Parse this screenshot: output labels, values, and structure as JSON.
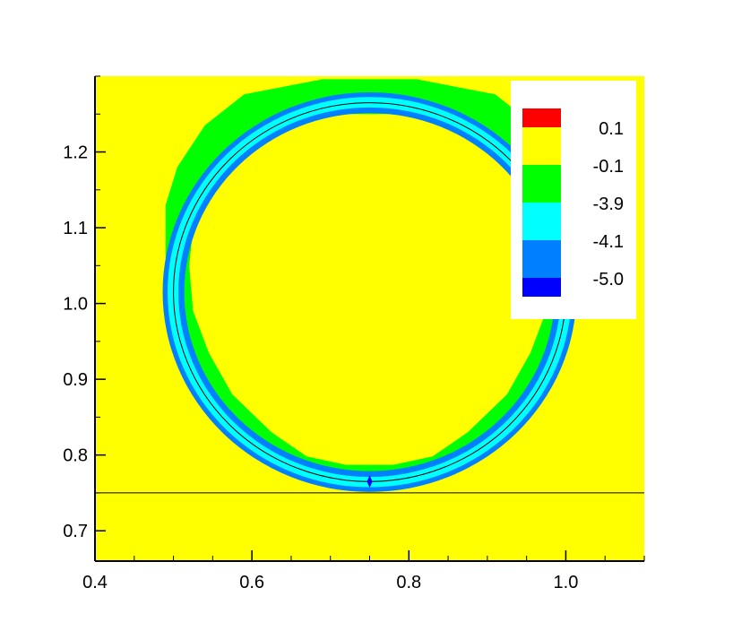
{
  "chart_data": {
    "type": "heatmap",
    "title": "",
    "xlabel": "",
    "ylabel": "",
    "xlim": [
      0.4,
      1.1
    ],
    "ylim": [
      0.66,
      1.3
    ],
    "x_ticks": [
      0.4,
      0.6,
      0.8,
      1.0
    ],
    "x_tick_labels": [
      "0.4",
      "0.6",
      "0.8",
      "1.0"
    ],
    "y_ticks": [
      0.7,
      0.8,
      0.9,
      1.0,
      1.1,
      1.2
    ],
    "y_tick_labels": [
      "0.7",
      "0.8",
      "0.9",
      "1.0",
      "1.1",
      "1.2"
    ],
    "x_minor_step": 0.05,
    "y_minor_step": 0.05,
    "background_color": "#ffff00",
    "contour_levels": [
      {
        "label": "0.1",
        "color": "#ff0000"
      },
      {
        "label": "0.1",
        "color": "#ffff00"
      },
      {
        "label": "-0.1",
        "color": "#00ff00"
      },
      {
        "label": "-3.9",
        "color": "#00ffff"
      },
      {
        "label": "-4.1",
        "color": "#0080ff"
      },
      {
        "label": "-5.0",
        "color": "#0000ff"
      }
    ],
    "legend": {
      "placement": "top-right",
      "entries": [
        "0.1",
        "-0.1",
        "-3.9",
        "-4.1",
        "-5.0"
      ]
    },
    "circle": {
      "cx": 0.75,
      "cy": 1.015,
      "r": 0.25
    },
    "band_outer_octagon": [
      [
        0.69,
        1.296
      ],
      [
        0.81,
        1.296
      ],
      [
        0.91,
        1.276
      ],
      [
        0.96,
        1.235
      ],
      [
        0.996,
        1.18
      ],
      [
        1.01,
        1.13
      ],
      [
        1.01,
        1.06
      ],
      [
        1.005,
        1.0
      ],
      [
        0.985,
        0.94
      ],
      [
        0.95,
        0.88
      ],
      [
        0.9,
        0.82
      ],
      [
        0.85,
        0.778
      ],
      [
        0.8,
        0.757
      ],
      [
        0.7,
        0.757
      ],
      [
        0.645,
        0.778
      ],
      [
        0.595,
        0.82
      ],
      [
        0.55,
        0.88
      ],
      [
        0.515,
        0.94
      ],
      [
        0.495,
        1.0
      ],
      [
        0.49,
        1.06
      ],
      [
        0.49,
        1.13
      ],
      [
        0.505,
        1.18
      ],
      [
        0.54,
        1.235
      ],
      [
        0.59,
        1.276
      ]
    ],
    "band_inner_octagon": [
      [
        0.7,
        1.25
      ],
      [
        0.8,
        1.25
      ],
      [
        0.875,
        1.232
      ],
      [
        0.925,
        1.195
      ],
      [
        0.955,
        1.15
      ],
      [
        0.975,
        1.1
      ],
      [
        0.98,
        1.05
      ],
      [
        0.975,
        0.99
      ],
      [
        0.955,
        0.935
      ],
      [
        0.925,
        0.88
      ],
      [
        0.875,
        0.83
      ],
      [
        0.83,
        0.798
      ],
      [
        0.78,
        0.787
      ],
      [
        0.72,
        0.787
      ],
      [
        0.67,
        0.798
      ],
      [
        0.625,
        0.83
      ],
      [
        0.575,
        0.88
      ],
      [
        0.545,
        0.935
      ],
      [
        0.525,
        0.99
      ],
      [
        0.52,
        1.05
      ],
      [
        0.525,
        1.1
      ],
      [
        0.545,
        1.15
      ],
      [
        0.575,
        1.195
      ],
      [
        0.625,
        1.232
      ]
    ],
    "horizontal_line_y": 0.75,
    "marker_point": [
      0.75,
      0.765
    ]
  }
}
